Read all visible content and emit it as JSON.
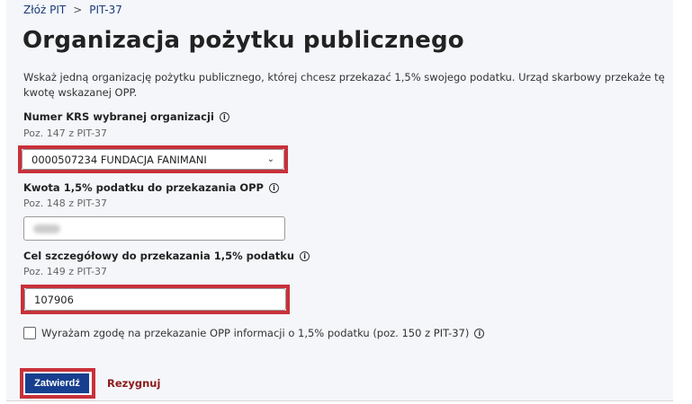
{
  "breadcrumb": {
    "items": [
      "Złóż PIT",
      "PIT-37"
    ],
    "separator": ">"
  },
  "title": "Organizacja pożytku publicznego",
  "description": "Wskaż jedną organizację pożytku publicznego, której chcesz przekazać 1,5% swojego podatku. Urząd skarbowy przekaże tę kwotę wskazanej OPP.",
  "fields": [
    {
      "label": "Numer KRS wybranej organizacji",
      "position": "Poz. 147 z PIT-37",
      "value": "0000507234 FUNDACJA FANIMANI",
      "type": "select"
    },
    {
      "label": "Kwota 1,5% podatku do przekazania OPP",
      "position": "Poz. 148 z PIT-37",
      "value": "",
      "type": "text-blurred"
    },
    {
      "label": "Cel szczegółowy do przekazania 1,5% podatku",
      "position": "Poz. 149 z PIT-37",
      "value": "107906",
      "type": "text"
    }
  ],
  "consent": {
    "label": "Wyrażam zgodę na przekazanie OPP informacji o 1,5% podatku (poz. 150 z PIT-37)",
    "checked": false
  },
  "actions": {
    "submit": "Zatwierdź",
    "cancel": "Rezygnuj"
  },
  "icons": {
    "info": "i",
    "chevron": "⌄"
  },
  "colors": {
    "highlight": "#c8313a",
    "primary": "#173f8f",
    "cancel": "#8b1a1a"
  }
}
